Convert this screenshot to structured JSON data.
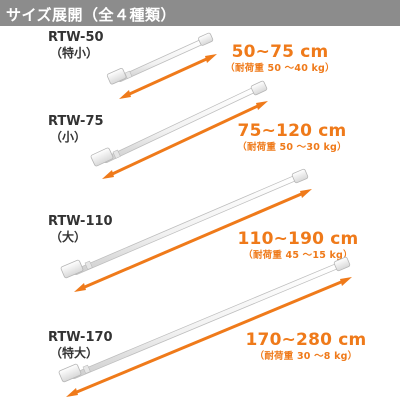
{
  "title": "サイズ展開（全４種類）",
  "colors": {
    "header_bg": "#8c8c8c",
    "header_text": "#ffffff",
    "accent_orange": "#ef7a1a",
    "model_text": "#333333",
    "rod": "#ffffff"
  },
  "products": [
    {
      "model": "RTW-50",
      "size": "（特小）",
      "range": "50~75 cm",
      "load": "（耐荷重 50 ～40 kg）"
    },
    {
      "model": "RTW-75",
      "size": "（小）",
      "range": "75~120 cm",
      "load": "（耐荷重 50 ～30 kg）"
    },
    {
      "model": "RTW-110",
      "size": "（大）",
      "range": "110~190 cm",
      "load": "（耐荷重 45 ～15 kg）"
    },
    {
      "model": "RTW-170",
      "size": "（特大）",
      "range": "170~280 cm",
      "load": "（耐荷重 30 ～8 kg）"
    }
  ]
}
